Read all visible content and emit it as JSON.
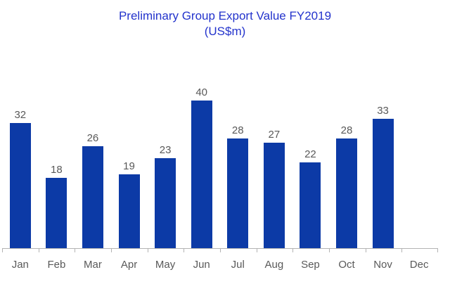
{
  "title": {
    "line1": "Preliminary Group Export Value FY2019",
    "line2": "(US$m)"
  },
  "colors": {
    "bar": "#0C3AA6",
    "title": "#2333CC",
    "label": "#595959",
    "axis": "#B3B3B3",
    "background": "#FFFFFF"
  },
  "chart_data": {
    "type": "bar",
    "title": "Preliminary Group Export Value FY2019",
    "subtitle": "(US$m)",
    "categories": [
      "Jan",
      "Feb",
      "Mar",
      "Apr",
      "May",
      "Jun",
      "Jul",
      "Aug",
      "Sep",
      "Oct",
      "Nov",
      "Dec"
    ],
    "values": [
      32,
      18,
      26,
      19,
      23,
      40,
      28,
      27,
      22,
      28,
      33,
      null
    ],
    "xlabel": "",
    "ylabel": "",
    "ylim": [
      0,
      40
    ],
    "grid": false,
    "legend": false,
    "data_labels": true,
    "data_label_position": "above-bar",
    "bar_color": "#0C3AA6"
  }
}
